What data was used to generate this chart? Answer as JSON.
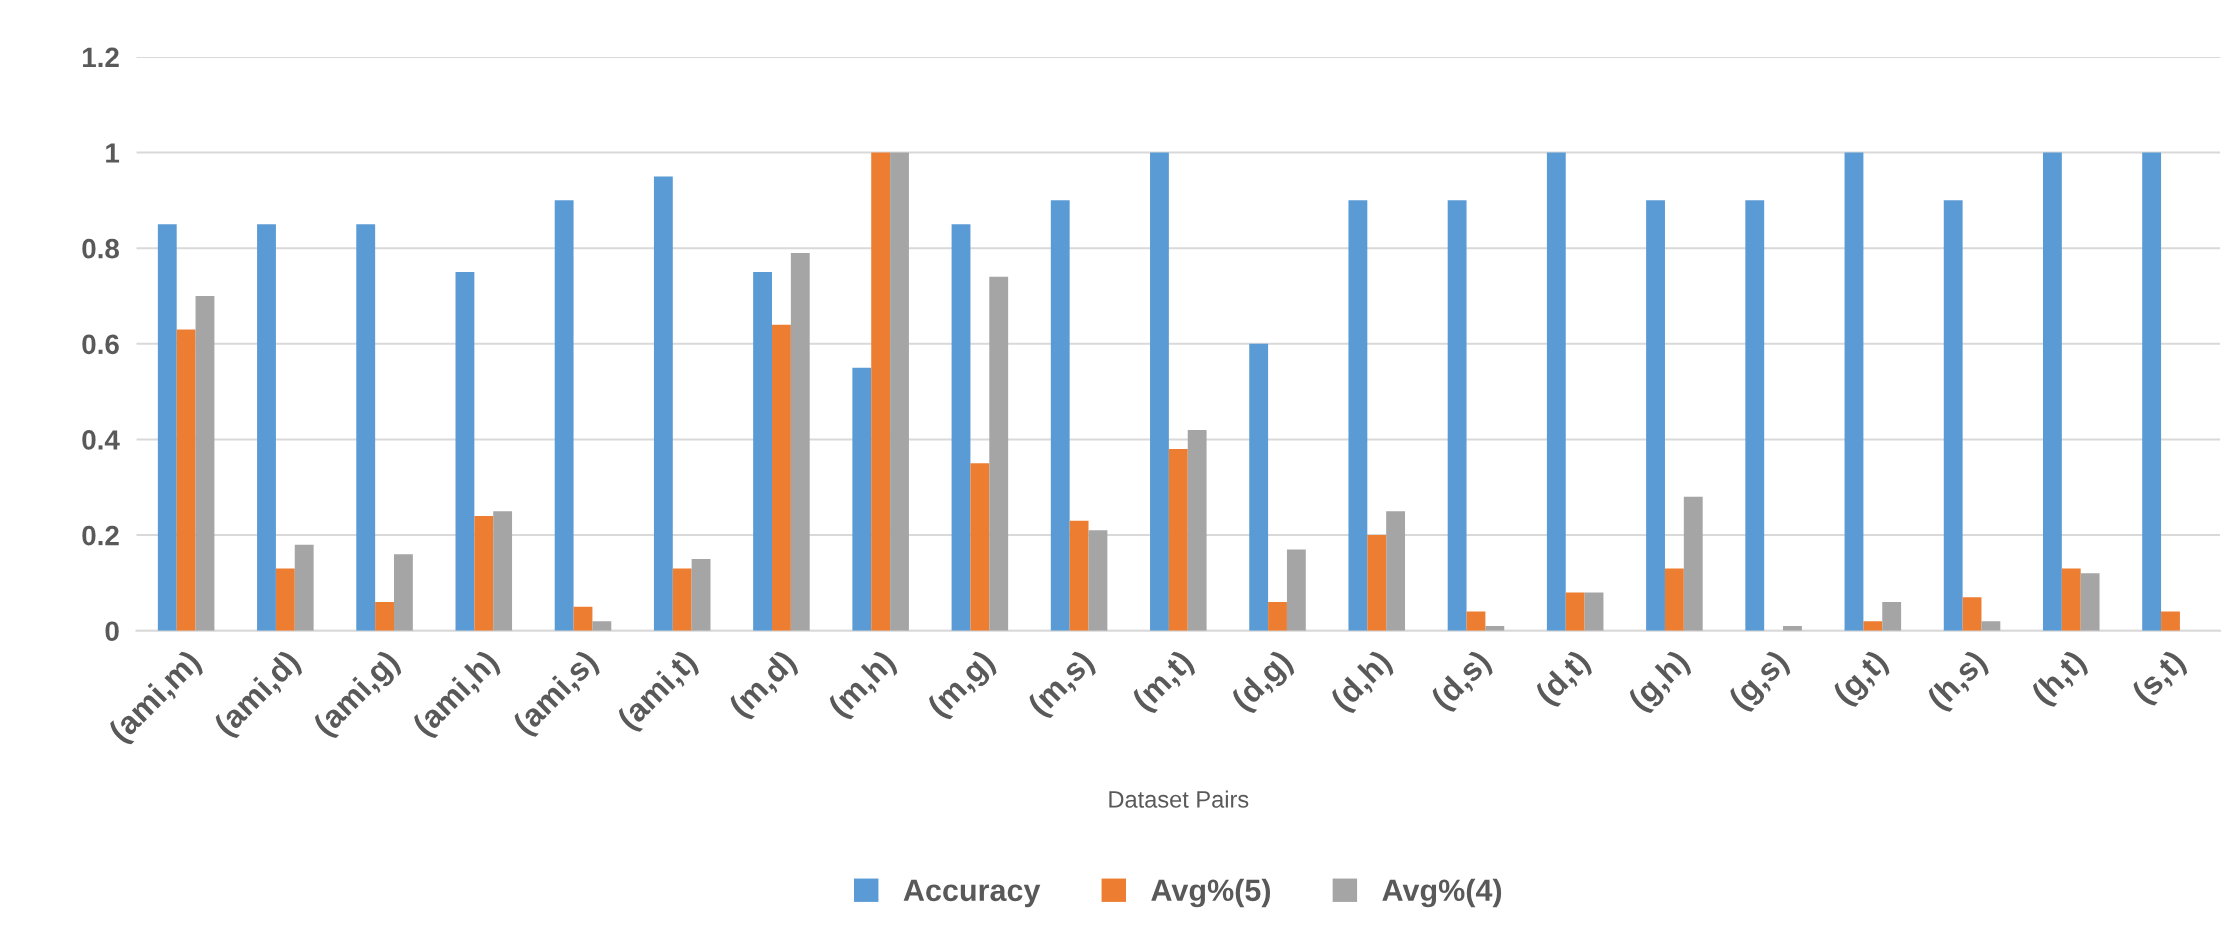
{
  "chart_data": {
    "type": "bar",
    "xlabel": "Dataset Pairs",
    "categories": [
      "(ami,m)",
      "(ami,d)",
      "(ami,g)",
      "(ami,h)",
      "(ami,s)",
      "(ami,t)",
      "(m,d)",
      "(m,h)",
      "(m,g)",
      "(m,s)",
      "(m,t)",
      "(d,g)",
      "(d,h)",
      "(d,s)",
      "(d,t)",
      "(g,h)",
      "(g,s)",
      "(g,t)",
      "(h,s)",
      "(h,t)",
      "(s,t)"
    ],
    "series": [
      {
        "name": "Accuracy",
        "color": "#5b9bd5",
        "values": [
          0.85,
          0.85,
          0.85,
          0.75,
          0.9,
          0.95,
          0.75,
          0.55,
          0.85,
          0.9,
          1,
          0.6,
          0.9,
          0.9,
          1,
          0.9,
          0.9,
          1,
          0.9,
          1,
          1
        ]
      },
      {
        "name": "Avg%(5)",
        "color": "#ed7d31",
        "values": [
          0.63,
          0.13,
          0.06,
          0.24,
          0.05,
          0.13,
          0.64,
          1,
          0.35,
          0.23,
          0.38,
          0.06,
          0.2,
          0.04,
          0.08,
          0.13,
          0,
          0.02,
          0.07,
          0.13,
          0.04
        ]
      },
      {
        "name": "Avg%(4)",
        "color": "#a5a5a5",
        "values": [
          0.7,
          0.18,
          0.16,
          0.25,
          0.02,
          0.15,
          0.79,
          1,
          0.74,
          0.21,
          0.42,
          0.17,
          0.25,
          0.01,
          0.08,
          0.28,
          0.01,
          0.06,
          0.02,
          0.12,
          0
        ]
      }
    ],
    "ylim": [
      0,
      1.2
    ],
    "yticks": [
      0,
      0.2,
      0.4,
      0.6,
      0.8,
      1,
      1.2
    ],
    "grid": "y",
    "legend": "bottom"
  }
}
